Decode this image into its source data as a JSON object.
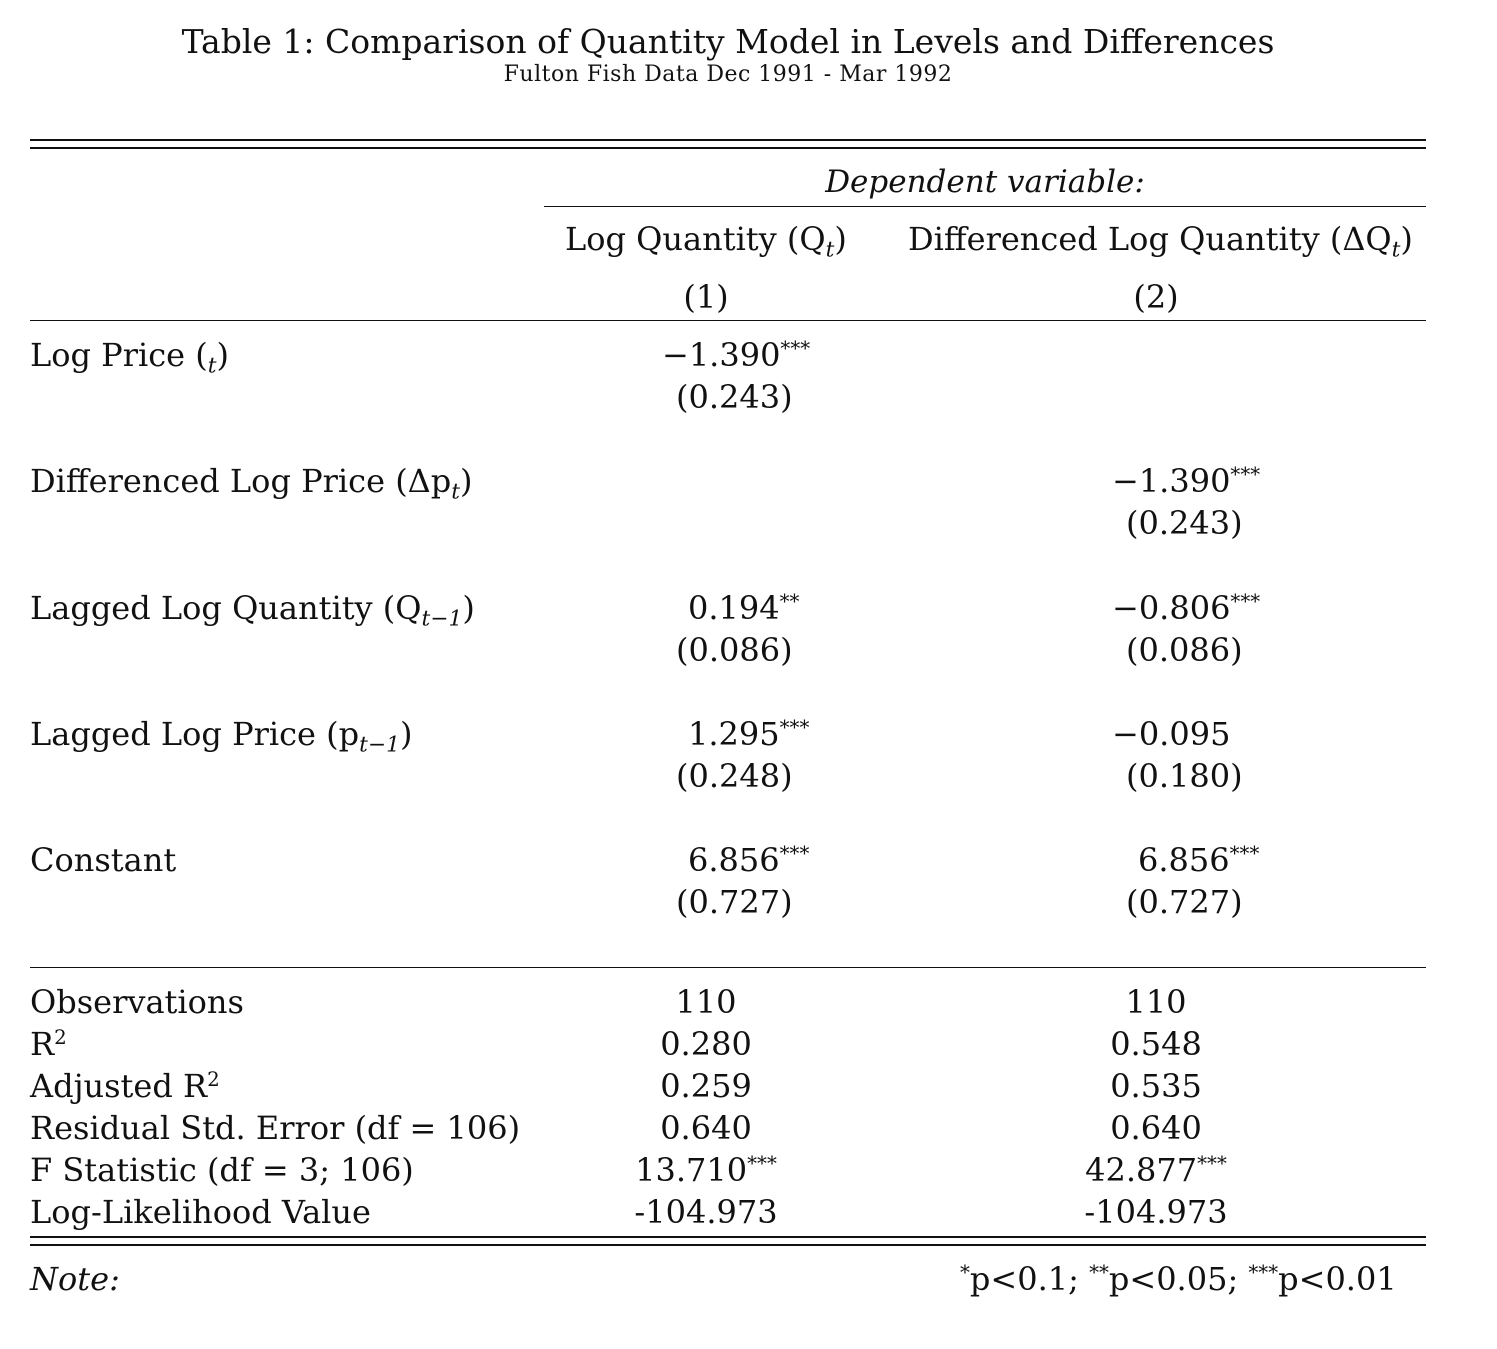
{
  "header": {
    "title": "Table 1: Comparison of Quantity Model in Levels and Differences",
    "subtitle": "Fulton Fish Data Dec 1991 - Mar 1992"
  },
  "columns": {
    "dependent_variable": "Dependent variable:",
    "col1": {
      "name": "Log Quantity (Q",
      "sub": "t",
      "close": ")",
      "number": "(1)"
    },
    "col2": {
      "name": "Differenced Log Quantity (ΔQ",
      "sub": "t",
      "close": ")",
      "number": "(2)"
    }
  },
  "rows": [
    {
      "label": {
        "text": "Log Price (",
        "sub": "t",
        "close": ")"
      },
      "col1": {
        "coef": "−1.390",
        "stars": "***",
        "se": "(0.243)"
      },
      "col2": {
        "coef": "",
        "stars": "",
        "se": ""
      }
    },
    {
      "label": {
        "text": "Differenced Log Price (Δp",
        "sub": "t",
        "close": ")"
      },
      "col1": {
        "coef": "",
        "stars": "",
        "se": ""
      },
      "col2": {
        "coef": "−1.390",
        "stars": "***",
        "se": "(0.243)"
      }
    },
    {
      "label": {
        "text": "Lagged Log Quantity (Q",
        "sub": "t−1",
        "close": ")"
      },
      "col1": {
        "coef": "0.194",
        "stars": "**",
        "se": "(0.086)"
      },
      "col2": {
        "coef": "−0.806",
        "stars": "***",
        "se": "(0.086)"
      }
    },
    {
      "label": {
        "text": "Lagged Log Price (p",
        "sub": "t−1",
        "close": ")"
      },
      "col1": {
        "coef": "1.295",
        "stars": "***",
        "se": "(0.248)"
      },
      "col2": {
        "coef": "−0.095",
        "stars": "",
        "se": "(0.180)"
      }
    },
    {
      "label": {
        "text": "Constant",
        "sub": "",
        "close": ""
      },
      "col1": {
        "coef": "6.856",
        "stars": "***",
        "se": "(0.727)"
      },
      "col2": {
        "coef": "6.856",
        "stars": "***",
        "se": "(0.727)"
      }
    }
  ],
  "stats": [
    {
      "label": "Observations",
      "sup": "",
      "col1": "110",
      "col1_stars": "",
      "col2": "110",
      "col2_stars": ""
    },
    {
      "label": "R",
      "sup": "2",
      "col1": "0.280",
      "col1_stars": "",
      "col2": "0.548",
      "col2_stars": ""
    },
    {
      "label": "Adjusted R",
      "sup": "2",
      "col1": "0.259",
      "col1_stars": "",
      "col2": "0.535",
      "col2_stars": ""
    },
    {
      "label": "Residual Std. Error (df = 106)",
      "sup": "",
      "col1": "0.640",
      "col1_stars": "",
      "col2": "0.640",
      "col2_stars": ""
    },
    {
      "label": "F Statistic (df = 3; 106)",
      "sup": "",
      "col1": "13.710",
      "col1_stars": "***",
      "col2": "42.877",
      "col2_stars": "***"
    },
    {
      "label": "Log-Likelihood Value",
      "sup": "",
      "col1": "-104.973",
      "col1_stars": "",
      "col2": "-104.973",
      "col2_stars": ""
    }
  ],
  "note": {
    "label": "Note:",
    "s1": "*",
    "t1": "p<0.1; ",
    "s2": "**",
    "t2": "p<0.05; ",
    "s3": "***",
    "t3": "p<0.01"
  }
}
